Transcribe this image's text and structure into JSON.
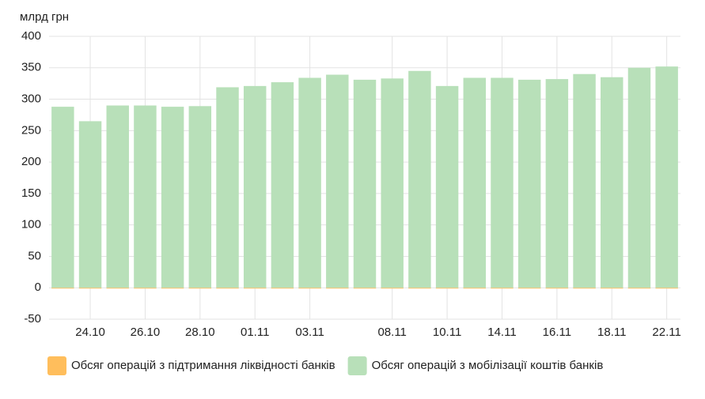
{
  "chart_data": {
    "type": "bar",
    "y_label": "млрд грн",
    "categories": [
      null,
      "24.10",
      null,
      "26.10",
      null,
      "28.10",
      null,
      "01.11",
      null,
      "03.11",
      null,
      null,
      "08.11",
      null,
      "10.11",
      null,
      "14.11",
      null,
      "16.11",
      null,
      "18.11",
      null,
      "22.11"
    ],
    "series": [
      {
        "name": "Обсяг операцій з підтримання ліквідності банків",
        "color": "#ffbe5c",
        "values": [
          0,
          0,
          0,
          0,
          0,
          0,
          0,
          0,
          0,
          0,
          0,
          0,
          0,
          0,
          0,
          0,
          0,
          0,
          0,
          0,
          0,
          0,
          0
        ]
      },
      {
        "name": "Обсяг операцій з мобілізації коштів банків",
        "color": "#b8e0b9",
        "values": [
          288,
          265,
          290,
          290,
          288,
          289,
          319,
          321,
          327,
          334,
          339,
          331,
          333,
          345,
          321,
          334,
          334,
          331,
          332,
          340,
          335,
          350,
          352
        ]
      }
    ],
    "ylim": [
      -50,
      400
    ],
    "yticks": [
      -50,
      0,
      50,
      100,
      150,
      200,
      250,
      300,
      350,
      400
    ],
    "grid": true
  }
}
